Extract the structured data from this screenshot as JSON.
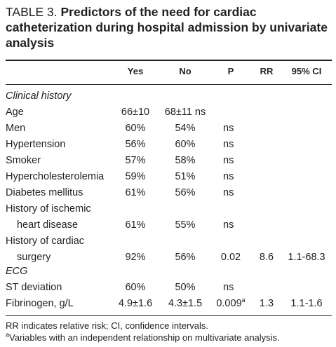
{
  "title": {
    "label": "TABLE 3.",
    "text": "Predictors of the need for cardiac catheterization during hospital admission by univariate analysis"
  },
  "columns": [
    "Yes",
    "No",
    "P",
    "RR",
    "95% CI"
  ],
  "sections": {
    "clinical_history": "Clinical history",
    "ecg": "ECG"
  },
  "rows": [
    {
      "label": "Age",
      "yes": "66±10",
      "no": "68±11 ns",
      "p": "",
      "rr": "",
      "ci": ""
    },
    {
      "label": "Men",
      "yes": "60%",
      "no": "54%",
      "p": "ns",
      "rr": "",
      "ci": ""
    },
    {
      "label": "Hypertension",
      "yes": "56%",
      "no": "60%",
      "p": "ns",
      "rr": "",
      "ci": ""
    },
    {
      "label": "Smoker",
      "yes": "57%",
      "no": "58%",
      "p": "ns",
      "rr": "",
      "ci": ""
    },
    {
      "label": "Hypercholesterolemia",
      "yes": "59%",
      "no": "51%",
      "p": "ns",
      "rr": "",
      "ci": ""
    },
    {
      "label": "Diabetes mellitus",
      "yes": "61%",
      "no": "56%",
      "p": "ns",
      "rr": "",
      "ci": ""
    },
    {
      "label": "History of ischemic",
      "label2": "heart disease",
      "yes": "61%",
      "no": "55%",
      "p": "ns",
      "rr": "",
      "ci": ""
    },
    {
      "label": "History of cardiac",
      "label2": "surgery",
      "yes": "92%",
      "no": "56%",
      "p": "0.02",
      "rr": "8.6",
      "ci": "1.1-68.3"
    },
    {
      "label": "ST deviation",
      "yes": "60%",
      "no": "50%",
      "p": "ns",
      "rr": "",
      "ci": ""
    },
    {
      "label": "Fibrinogen, g/L",
      "yes": "4.9±1.6",
      "no": "4.3±1.5",
      "p": "0.009",
      "p_sup": "a",
      "rr": "1.3",
      "ci": "1.1-1.6"
    }
  ],
  "footnotes": {
    "line1": "RR indicates relative risk; CI, confidence intervals.",
    "line2_sup": "a",
    "line2": "Variables with an independent relationship on multivariate analysis."
  }
}
